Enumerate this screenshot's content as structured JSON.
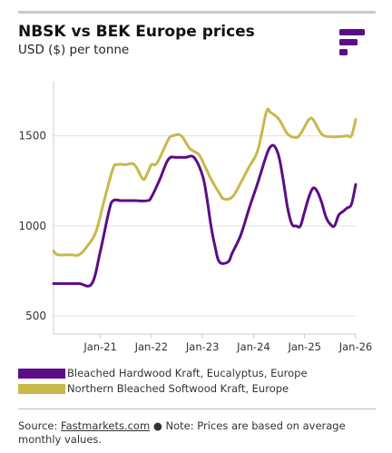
{
  "header": {
    "title": "NBSK vs BEK Europe prices",
    "subtitle": "USD ($) per tonne"
  },
  "footer": {
    "source_prefix": "Source: ",
    "source_link": "Fastmarkets.com",
    "bullet": " ● ",
    "note": "Note: Prices are based on average monthly values."
  },
  "colors": {
    "bek": "#5c0d86",
    "nbsk": "#c9b84a",
    "logo": "#5c0d86",
    "grid": "#e0e0e0",
    "axis": "#cccccc"
  },
  "chart_data": {
    "type": "line",
    "title": "NBSK vs BEK Europe prices",
    "ylabel": "USD ($) per tonne",
    "xlim": [
      "2020-02",
      "2026-01"
    ],
    "ylim": [
      400,
      1800
    ],
    "yticks": [
      500,
      1000,
      1500
    ],
    "xticks": [
      {
        "date": "2021-01",
        "label": "Jan-21"
      },
      {
        "date": "2022-01",
        "label": "Jan-22"
      },
      {
        "date": "2023-01",
        "label": "Jan-23"
      },
      {
        "date": "2024-01",
        "label": "Jan-24"
      },
      {
        "date": "2025-01",
        "label": "Jan-25"
      },
      {
        "date": "2026-01",
        "label": "Jan-26"
      }
    ],
    "grid": "horizontal",
    "legend_position": "bottom",
    "series": [
      {
        "name": "Bleached Hardwood Kraft, Eucalyptus, Europe",
        "color": "#5c0d86",
        "points": [
          [
            "2020-02",
            680
          ],
          [
            "2020-05",
            680
          ],
          [
            "2020-08",
            680
          ],
          [
            "2020-11",
            680
          ],
          [
            "2021-01",
            860
          ],
          [
            "2021-03",
            1080
          ],
          [
            "2021-04",
            1140
          ],
          [
            "2021-06",
            1140
          ],
          [
            "2021-09",
            1140
          ],
          [
            "2021-12",
            1140
          ],
          [
            "2022-01",
            1160
          ],
          [
            "2022-03",
            1260
          ],
          [
            "2022-05",
            1370
          ],
          [
            "2022-07",
            1380
          ],
          [
            "2022-09",
            1380
          ],
          [
            "2022-11",
            1380
          ],
          [
            "2023-01",
            1280
          ],
          [
            "2023-02",
            1160
          ],
          [
            "2023-03",
            1000
          ],
          [
            "2023-04",
            880
          ],
          [
            "2023-05",
            800
          ],
          [
            "2023-07",
            800
          ],
          [
            "2023-08",
            850
          ],
          [
            "2023-10",
            950
          ],
          [
            "2023-12",
            1100
          ],
          [
            "2024-02",
            1240
          ],
          [
            "2024-04",
            1390
          ],
          [
            "2024-05",
            1440
          ],
          [
            "2024-06",
            1440
          ],
          [
            "2024-07",
            1380
          ],
          [
            "2024-08",
            1250
          ],
          [
            "2024-09",
            1100
          ],
          [
            "2024-10",
            1010
          ],
          [
            "2024-11",
            1000
          ],
          [
            "2024-12",
            1000
          ],
          [
            "2025-01",
            1080
          ],
          [
            "2025-02",
            1160
          ],
          [
            "2025-03",
            1210
          ],
          [
            "2025-04",
            1190
          ],
          [
            "2025-05",
            1130
          ],
          [
            "2025-06",
            1050
          ],
          [
            "2025-07",
            1010
          ],
          [
            "2025-08",
            1000
          ],
          [
            "2025-09",
            1060
          ],
          [
            "2025-10",
            1080
          ],
          [
            "2025-11",
            1100
          ],
          [
            "2025-12",
            1120
          ],
          [
            "2026-01",
            1230
          ]
        ]
      },
      {
        "name": "Northern Bleached Softwood Kraft, Europe",
        "color": "#c9b84a",
        "points": [
          [
            "2020-02",
            860
          ],
          [
            "2020-03",
            840
          ],
          [
            "2020-06",
            840
          ],
          [
            "2020-08",
            840
          ],
          [
            "2020-10",
            890
          ],
          [
            "2020-12",
            970
          ],
          [
            "2021-02",
            1150
          ],
          [
            "2021-04",
            1320
          ],
          [
            "2021-05",
            1340
          ],
          [
            "2021-07",
            1340
          ],
          [
            "2021-09",
            1340
          ],
          [
            "2021-11",
            1260
          ],
          [
            "2021-12",
            1290
          ],
          [
            "2022-01",
            1340
          ],
          [
            "2022-02",
            1340
          ],
          [
            "2022-03",
            1380
          ],
          [
            "2022-05",
            1480
          ],
          [
            "2022-06",
            1500
          ],
          [
            "2022-08",
            1500
          ],
          [
            "2022-10",
            1430
          ],
          [
            "2022-12",
            1400
          ],
          [
            "2023-01",
            1360
          ],
          [
            "2023-03",
            1260
          ],
          [
            "2023-05",
            1180
          ],
          [
            "2023-06",
            1150
          ],
          [
            "2023-08",
            1160
          ],
          [
            "2023-10",
            1240
          ],
          [
            "2023-12",
            1330
          ],
          [
            "2024-02",
            1420
          ],
          [
            "2024-04",
            1630
          ],
          [
            "2024-05",
            1630
          ],
          [
            "2024-07",
            1590
          ],
          [
            "2024-09",
            1510
          ],
          [
            "2024-11",
            1490
          ],
          [
            "2024-12",
            1510
          ],
          [
            "2025-01",
            1550
          ],
          [
            "2025-02",
            1590
          ],
          [
            "2025-03",
            1590
          ],
          [
            "2025-05",
            1510
          ],
          [
            "2025-07",
            1495
          ],
          [
            "2025-09",
            1495
          ],
          [
            "2025-11",
            1500
          ],
          [
            "2025-12",
            1500
          ],
          [
            "2026-01",
            1590
          ]
        ]
      }
    ]
  }
}
